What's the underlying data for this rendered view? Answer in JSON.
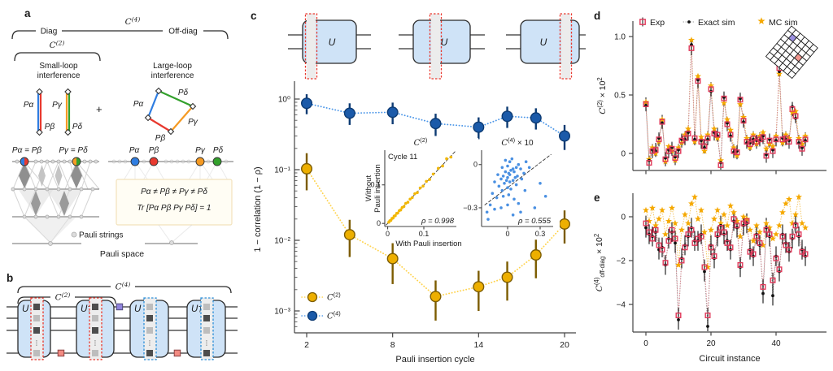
{
  "figure_labels": {
    "a": "a",
    "b": "b",
    "c": "c",
    "d": "d",
    "e": "e"
  },
  "panel_a": {
    "diag": "Diag",
    "offdiag": "Off-diag",
    "c2": {
      "base": "C",
      "sup": "(2)"
    },
    "c4": {
      "base": "C",
      "sup": "(4)"
    },
    "small_loop": [
      "Small-loop",
      "interference"
    ],
    "large_loop": [
      "Large-loop",
      "interference"
    ],
    "plus": "+",
    "p_alpha": "Pα",
    "p_beta": "Pβ",
    "p_gamma": "Pγ",
    "p_delta": "Pδ",
    "eq_left": "Pα = Pβ",
    "eq_right": "Pγ = Pδ",
    "neq_line": "Pα ≠ Pβ ≠ Pγ ≠ Pδ",
    "trace_line": "Tr [Pα Pβ Pγ Pδ] = 1",
    "pauli_strings": "Pauli strings",
    "pauli_space": "Pauli space",
    "colors": {
      "alpha": "#2F7DE1",
      "beta": "#E8392F",
      "gamma": "#F59A23",
      "delta": "#33A02C"
    }
  },
  "panel_b": {
    "blocks": [
      "U",
      "U†",
      "U",
      "U†"
    ],
    "c2": {
      "base": "C",
      "sup": "(2)"
    },
    "c4": {
      "base": "C",
      "sup": "(4)"
    },
    "pauli_colors": {
      "pink": "#F28B82",
      "purple": "#9184DD"
    }
  },
  "panel_c_top": {
    "u": "U"
  },
  "chart_data": [
    {
      "id": "c_main",
      "type": "line",
      "yscale": "log",
      "xlabel": "Pauli insertion cycle",
      "ylabel": "1 − correlation (1 − ρ)",
      "xticks": [
        2,
        8,
        14,
        20
      ],
      "ytick_labels": [
        "10⁰",
        "10⁻¹",
        "10⁻²",
        "10⁻³"
      ],
      "x": [
        2,
        5,
        8,
        11,
        14,
        16,
        18,
        20
      ],
      "legend_position": "lower left",
      "series": [
        {
          "name_parts": [
            [
              "C",
              "cal"
            ],
            [
              "(2)",
              "sup"
            ]
          ],
          "color": "#EDAF00",
          "edge": "#7C5C00",
          "line": "#FFD34D",
          "values": [
            0.103,
            0.012,
            0.0055,
            0.0016,
            0.0022,
            0.003,
            0.0062,
            0.017
          ],
          "err_lo": [
            0.052,
            0.0062,
            0.0031,
            0.00087,
            0.0012,
            0.0016,
            0.0033,
            0.008
          ],
          "err_hi": [
            0.068,
            0.0075,
            0.0036,
            0.0011,
            0.0015,
            0.002,
            0.004,
            0.0095
          ]
        },
        {
          "name_parts": [
            [
              "C",
              "cal"
            ],
            [
              "(4)",
              "sup"
            ]
          ],
          "color": "#1B5AA9",
          "edge": "#0D3B73",
          "line": "#4D97E8",
          "values": [
            0.87,
            0.63,
            0.65,
            0.45,
            0.4,
            0.57,
            0.54,
            0.3
          ],
          "err_lo": [
            0.26,
            0.2,
            0.21,
            0.15,
            0.13,
            0.18,
            0.17,
            0.11
          ],
          "err_hi": [
            0.3,
            0.24,
            0.24,
            0.17,
            0.15,
            0.21,
            0.2,
            0.13
          ]
        }
      ]
    },
    {
      "id": "c_inset_left",
      "type": "scatter",
      "title_parts": [
        [
          "C",
          "cal"
        ],
        [
          "(2)",
          "sup"
        ]
      ],
      "annotation": "Cycle 11",
      "xlabel": "With Pauli insertion",
      "ylabel_lines": [
        "Without",
        "Pauli insertion"
      ],
      "rho": "ρ = 0.998",
      "xlim": [
        -0.008,
        0.19
      ],
      "ylim": [
        -0.008,
        0.19
      ],
      "xticks": [
        [
          0,
          "0"
        ],
        [
          0.1,
          "0.1"
        ]
      ],
      "yticks": [
        [
          0,
          "0"
        ],
        [
          0.1,
          "0.1"
        ]
      ],
      "color": "#F2B705",
      "fit_line": [
        [
          -0.004,
          -0.004
        ],
        [
          0.186,
          0.186
        ]
      ],
      "points": [
        [
          0.003,
          0.003
        ],
        [
          0.006,
          0.007
        ],
        [
          0.009,
          0.008
        ],
        [
          0.012,
          0.013
        ],
        [
          0.015,
          0.014
        ],
        [
          0.018,
          0.019
        ],
        [
          0.021,
          0.02
        ],
        [
          0.025,
          0.026
        ],
        [
          0.028,
          0.027
        ],
        [
          0.032,
          0.033
        ],
        [
          0.036,
          0.035
        ],
        [
          0.04,
          0.041
        ],
        [
          0.045,
          0.044
        ],
        [
          0.05,
          0.052
        ],
        [
          0.056,
          0.055
        ],
        [
          0.062,
          0.063
        ],
        [
          0.068,
          0.067
        ],
        [
          0.075,
          0.077
        ],
        [
          0.082,
          0.08
        ],
        [
          0.09,
          0.092
        ],
        [
          0.098,
          0.097
        ],
        [
          0.107,
          0.109
        ],
        [
          0.116,
          0.114
        ],
        [
          0.126,
          0.128
        ],
        [
          0.14,
          0.143
        ],
        [
          0.152,
          0.149
        ],
        [
          0.163,
          0.168
        ],
        [
          0.175,
          0.172
        ]
      ]
    },
    {
      "id": "c_inset_right",
      "type": "scatter",
      "title_parts": [
        [
          "C",
          "cal"
        ],
        [
          "(4)",
          "sup"
        ],
        [
          " × 10",
          "n"
        ]
      ],
      "rho": "ρ = 0.555",
      "xlim": [
        -0.24,
        0.42
      ],
      "ylim": [
        -0.43,
        0.1
      ],
      "xticks": [
        [
          0,
          "0"
        ],
        [
          0.3,
          "0.3"
        ]
      ],
      "yticks": [
        [
          0,
          "0"
        ],
        [
          -0.3,
          "−0.3"
        ]
      ],
      "color": "#4A90E2",
      "fit_line": [
        [
          -0.21,
          -0.28
        ],
        [
          0.4,
          0.07
        ]
      ],
      "points": [
        [
          -0.05,
          -0.02
        ],
        [
          0.0,
          -0.01
        ],
        [
          0.02,
          0.02
        ],
        [
          0.05,
          -0.03
        ],
        [
          -0.02,
          -0.05
        ],
        [
          0.01,
          -0.06
        ],
        [
          0.03,
          -0.04
        ],
        [
          -0.04,
          -0.08
        ],
        [
          0.0,
          -0.09
        ],
        [
          0.02,
          -0.07
        ],
        [
          0.06,
          -0.05
        ],
        [
          0.08,
          -0.02
        ],
        [
          0.1,
          0.0
        ],
        [
          0.12,
          -0.03
        ],
        [
          0.07,
          -0.09
        ],
        [
          -0.01,
          -0.11
        ],
        [
          -0.06,
          -0.1
        ],
        [
          -0.09,
          -0.07
        ],
        [
          -0.12,
          -0.12
        ],
        [
          -0.08,
          -0.15
        ],
        [
          -0.03,
          -0.13
        ],
        [
          0.02,
          -0.12
        ],
        [
          0.05,
          -0.11
        ],
        [
          0.09,
          -0.08
        ],
        [
          0.0,
          -0.16
        ],
        [
          -0.05,
          -0.18
        ],
        [
          0.03,
          -0.17
        ],
        [
          0.08,
          -0.14
        ],
        [
          0.13,
          -0.1
        ],
        [
          0.17,
          0.02
        ],
        [
          0.2,
          -0.02
        ],
        [
          0.15,
          -0.06
        ],
        [
          -0.14,
          -0.2
        ],
        [
          -0.1,
          -0.23
        ],
        [
          -0.04,
          -0.22
        ],
        [
          0.01,
          -0.21
        ],
        [
          0.06,
          -0.24
        ],
        [
          -0.16,
          -0.28
        ],
        [
          -0.19,
          -0.33
        ],
        [
          -0.12,
          -0.31
        ],
        [
          -0.06,
          -0.3
        ],
        [
          0.0,
          -0.28
        ],
        [
          0.05,
          -0.35
        ],
        [
          0.1,
          -0.27
        ],
        [
          0.3,
          -0.13
        ],
        [
          0.25,
          -0.3
        ],
        [
          0.35,
          -0.22
        ],
        [
          0.16,
          -0.18
        ],
        [
          -0.02,
          0.03
        ],
        [
          0.04,
          0.04
        ],
        [
          -0.18,
          -0.38
        ],
        [
          0.12,
          -0.33
        ]
      ]
    },
    {
      "id": "d",
      "type": "line",
      "ylabel_parts": [
        [
          "C",
          "cal"
        ],
        [
          "(2)",
          "sup"
        ],
        [
          " × 10",
          "n"
        ],
        [
          "2",
          "sup"
        ]
      ],
      "yticks": [
        [
          1.0,
          "1.0"
        ],
        [
          0.5,
          "0.5"
        ],
        [
          0,
          "0"
        ]
      ],
      "xticks": [
        0,
        20,
        40
      ],
      "legend": [
        "Exp",
        "Exact sim",
        "MC sim"
      ],
      "qubit_grid": {
        "rows": 7,
        "cols": 6,
        "cell": 7,
        "angle": 40,
        "purple_cell": [
          1,
          1
        ],
        "salmon_cell": [
          3,
          4
        ],
        "purple": "#9A8FE0",
        "salmon": "#F2958D"
      },
      "series": [
        {
          "name": "MC sim",
          "marker": "star",
          "color": "#F5A800",
          "line": "#F3C35C",
          "values": [
            0.44,
            -0.05,
            0.05,
            0.0,
            0.1,
            0.29,
            -0.07,
            0.06,
            0.02,
            -0.06,
            0.05,
            0.09,
            0.16,
            0.21,
            0.97,
            0.1,
            0.66,
            0.14,
            0.02,
            0.16,
            0.58,
            0.21,
            0.13,
            -0.06,
            0.43,
            0.29,
            0.2,
            0.05,
            -0.02,
            0.42,
            0.31,
            0.13,
            0.05,
            0.16,
            0.08,
            0.15,
            0.18,
            0.04,
            0.08,
            0.06,
            0.15,
            0.68,
            0.09,
            0.16,
            0.13,
            0.35,
            0.36,
            0.13,
            0.08,
            0.15
          ]
        },
        {
          "name": "Exact sim",
          "marker": "dot",
          "color": "#111111",
          "line": "#9A9A9A",
          "err": 0.04,
          "err_color": "#111111",
          "values": [
            0.41,
            -0.06,
            0.03,
            0.02,
            0.13,
            0.26,
            -0.04,
            0.03,
            0.05,
            -0.03,
            0.03,
            0.12,
            0.12,
            0.18,
            0.93,
            0.12,
            0.63,
            0.11,
            0.05,
            0.12,
            0.53,
            0.18,
            0.15,
            -0.08,
            0.48,
            0.26,
            0.15,
            0.01,
            0.02,
            0.47,
            0.27,
            0.09,
            0.09,
            0.12,
            0.11,
            0.11,
            0.15,
            -0.01,
            0.12,
            0.03,
            0.11,
            0.7,
            0.13,
            0.12,
            0.11,
            0.4,
            0.3,
            0.09,
            0.05,
            0.11
          ]
        },
        {
          "name": "Exp",
          "marker": "square",
          "color": "#E0395A",
          "line": "#DA8A93",
          "err": 0.06,
          "err_color": "#222222",
          "values": [
            0.42,
            -0.08,
            0.02,
            0.03,
            0.12,
            0.27,
            -0.05,
            0.02,
            0.04,
            -0.04,
            0.02,
            0.11,
            0.13,
            0.17,
            0.9,
            0.13,
            0.62,
            0.1,
            0.06,
            0.13,
            0.55,
            0.17,
            0.16,
            -0.1,
            0.47,
            0.25,
            0.16,
            0.02,
            0.01,
            0.46,
            0.28,
            0.1,
            0.08,
            0.13,
            0.1,
            0.12,
            0.14,
            -0.02,
            0.11,
            0.02,
            0.12,
            0.73,
            0.12,
            0.13,
            0.1,
            0.38,
            0.32,
            0.1,
            0.04,
            0.12
          ]
        }
      ]
    },
    {
      "id": "e",
      "type": "line",
      "ylabel_parts": [
        [
          "C",
          "cal"
        ],
        [
          "(4)",
          "sup"
        ],
        [
          "off-diag",
          "sub"
        ],
        [
          " × 10",
          "n"
        ],
        [
          "2",
          "sup"
        ]
      ],
      "xlabel": "Circuit instance",
      "yticks": [
        [
          0,
          "0"
        ],
        [
          -2,
          "−2"
        ],
        [
          -4,
          "−4"
        ]
      ],
      "xticks": [
        0,
        20,
        40
      ],
      "series": [
        {
          "name": "MC sim",
          "marker": "star",
          "color": "#F5A800",
          "line": "#F3C35C",
          "values": [
            0.3,
            -0.2,
            0.4,
            -0.4,
            -0.1,
            0.3,
            -0.8,
            -0.2,
            0.4,
            -0.3,
            -2.2,
            -0.6,
            0.1,
            -0.3,
            0.6,
            0.9,
            -0.1,
            0.3,
            -0.7,
            -2.3,
            -0.6,
            -0.1,
            0.3,
            -0.3,
            0.1,
            -0.4,
            0.5,
            0.2,
            -0.2,
            -0.9,
            0.0,
            -0.1,
            -0.6,
            -1.1,
            -0.4,
            -0.7,
            -1.3,
            -0.3,
            -0.5,
            -1.0,
            -0.8,
            -0.4,
            0.2,
            0.6,
            0.8,
            -0.3,
            0.1,
            0.9,
            -0.3,
            -0.5
          ]
        },
        {
          "name": "Exact sim",
          "marker": "dot",
          "color": "#111111",
          "line": "#9A9A9A",
          "err": 0.45,
          "err_color": "#111111",
          "values": [
            -0.5,
            -0.8,
            -0.9,
            -0.7,
            -1.5,
            -1.4,
            -2.2,
            -1.0,
            -0.7,
            -1.2,
            -4.7,
            -1.9,
            -1.3,
            -0.9,
            -0.5,
            -1.1,
            -1.1,
            -0.8,
            -2.5,
            -5.0,
            -1.3,
            -1.9,
            -0.9,
            -0.4,
            -0.8,
            -1.1,
            -1.5,
            -0.2,
            -0.5,
            -2.3,
            -0.4,
            -0.3,
            -1.5,
            -1.8,
            -0.8,
            -1.3,
            -3.5,
            -0.5,
            -0.9,
            -3.6,
            -1.8,
            -2.5,
            -0.8,
            -1.2,
            -1.6,
            -1.0,
            -0.3,
            -0.9,
            -1.5,
            -1.8
          ]
        },
        {
          "name": "Exp",
          "marker": "square",
          "color": "#E0395A",
          "line": "#DA8A93",
          "err": 0.35,
          "err_color": "#222222",
          "values": [
            -0.3,
            -0.7,
            -1.0,
            -0.6,
            -1.3,
            -1.5,
            -2.1,
            -1.1,
            -0.6,
            -1.0,
            -4.5,
            -2.0,
            -1.4,
            -0.8,
            -0.6,
            -1.2,
            -1.0,
            -0.9,
            -2.3,
            -4.5,
            -1.4,
            -1.8,
            -0.8,
            -0.5,
            -0.7,
            -1.2,
            -1.4,
            -0.1,
            -0.4,
            -2.2,
            -0.3,
            -0.2,
            -1.6,
            -1.7,
            -0.9,
            -1.2,
            -3.2,
            -0.6,
            -0.8,
            -2.9,
            -1.9,
            -2.4,
            -0.9,
            -1.3,
            -1.5,
            -0.9,
            -0.4,
            -0.8,
            -1.6,
            -1.7
          ]
        }
      ]
    }
  ]
}
